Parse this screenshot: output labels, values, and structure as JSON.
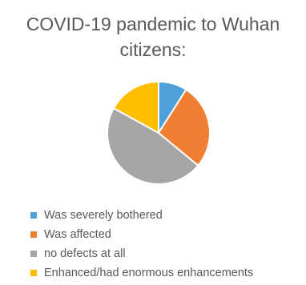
{
  "chart_data": {
    "type": "pie",
    "title_lines": [
      "COVID-19 pandemic to Wuhan",
      "citizens:"
    ],
    "categories": [
      "Was severely bothered",
      "Was affected",
      "no defects at all",
      "Enhanced/had enormous enhancements"
    ],
    "values": [
      9,
      27,
      47,
      17
    ],
    "colors": [
      "#4f9fd9",
      "#f07f34",
      "#a6a6a6",
      "#ffbf00"
    ],
    "legend_position": "bottom-left"
  }
}
